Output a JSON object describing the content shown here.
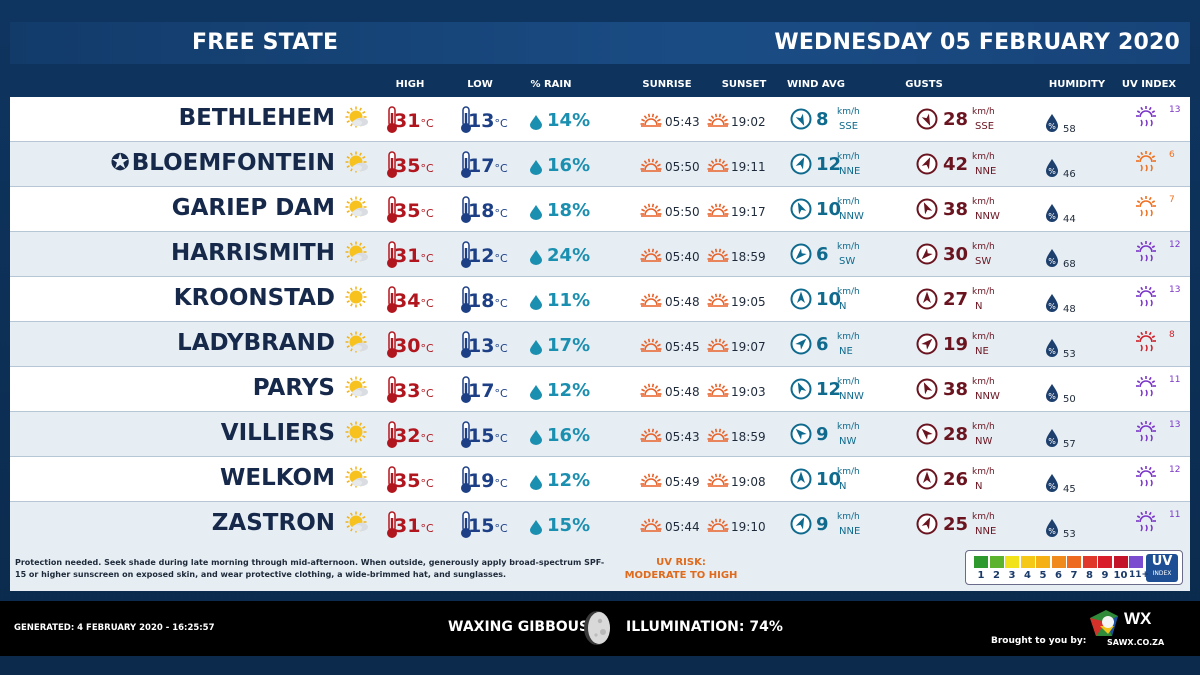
{
  "header": {
    "region": "FREE STATE",
    "date": "WEDNESDAY 05 FEBRUARY 2020"
  },
  "columns": {
    "high": "HIGH",
    "low": "LOW",
    "rain": "% RAIN",
    "sunrise": "SUNRISE",
    "sunset": "SUNSET",
    "wind": "WIND AVG",
    "gusts": "GUSTS",
    "humidity": "HUMIDITY",
    "uv": "UV INDEX"
  },
  "units": {
    "temp": "°C",
    "rain": "%",
    "speed": "km/h"
  },
  "capital_marker": "✪",
  "rows": [
    {
      "city": "BETHLEHEM",
      "capital": false,
      "weather": "sun-cloud",
      "high": "31",
      "low": "13",
      "rain": "14",
      "sunrise": "05:43",
      "sunset": "19:02",
      "wind": "8",
      "wind_dir": "SSE",
      "wind_deg": 155,
      "gust": "28",
      "gust_dir": "SSE",
      "humidity": "58",
      "uv": "13",
      "uv_color": "#7b36c8"
    },
    {
      "city": "BLOEMFONTEIN",
      "capital": true,
      "weather": "sun-cloud",
      "high": "35",
      "low": "17",
      "rain": "16",
      "sunrise": "05:50",
      "sunset": "19:11",
      "wind": "12",
      "wind_dir": "NNE",
      "wind_deg": 25,
      "gust": "42",
      "gust_dir": "NNE",
      "humidity": "46",
      "uv": "6",
      "uv_color": "#f07020"
    },
    {
      "city": "GARIEP DAM",
      "capital": false,
      "weather": "sun-cloud",
      "high": "35",
      "low": "18",
      "rain": "18",
      "sunrise": "05:50",
      "sunset": "19:17",
      "wind": "10",
      "wind_dir": "NNW",
      "wind_deg": 335,
      "gust": "38",
      "gust_dir": "NNW",
      "humidity": "44",
      "uv": "7",
      "uv_color": "#f07020"
    },
    {
      "city": "HARRISMITH",
      "capital": false,
      "weather": "sun-cloud",
      "high": "31",
      "low": "12",
      "rain": "24",
      "sunrise": "05:40",
      "sunset": "18:59",
      "wind": "6",
      "wind_dir": "SW",
      "wind_deg": 225,
      "gust": "30",
      "gust_dir": "SW",
      "humidity": "68",
      "uv": "12",
      "uv_color": "#7b36c8"
    },
    {
      "city": "KROONSTAD",
      "capital": false,
      "weather": "sun",
      "high": "34",
      "low": "18",
      "rain": "11",
      "sunrise": "05:48",
      "sunset": "19:05",
      "wind": "10",
      "wind_dir": "N",
      "wind_deg": 0,
      "gust": "27",
      "gust_dir": "N",
      "humidity": "48",
      "uv": "13",
      "uv_color": "#7b36c8"
    },
    {
      "city": "LADYBRAND",
      "capital": false,
      "weather": "sun-cloud",
      "high": "30",
      "low": "13",
      "rain": "17",
      "sunrise": "05:45",
      "sunset": "19:07",
      "wind": "6",
      "wind_dir": "NE",
      "wind_deg": 45,
      "gust": "19",
      "gust_dir": "NE",
      "humidity": "53",
      "uv": "8",
      "uv_color": "#d0202a"
    },
    {
      "city": "PARYS",
      "capital": false,
      "weather": "sun-cloud",
      "high": "33",
      "low": "17",
      "rain": "12",
      "sunrise": "05:48",
      "sunset": "19:03",
      "wind": "12",
      "wind_dir": "NNW",
      "wind_deg": 335,
      "gust": "38",
      "gust_dir": "NNW",
      "humidity": "50",
      "uv": "11",
      "uv_color": "#7b36c8"
    },
    {
      "city": "VILLIERS",
      "capital": false,
      "weather": "sun",
      "high": "32",
      "low": "15",
      "rain": "16",
      "sunrise": "05:43",
      "sunset": "18:59",
      "wind": "9",
      "wind_dir": "NW",
      "wind_deg": 315,
      "gust": "28",
      "gust_dir": "NW",
      "humidity": "57",
      "uv": "13",
      "uv_color": "#7b36c8"
    },
    {
      "city": "WELKOM",
      "capital": false,
      "weather": "sun-cloud",
      "high": "35",
      "low": "19",
      "rain": "12",
      "sunrise": "05:49",
      "sunset": "19:08",
      "wind": "10",
      "wind_dir": "N",
      "wind_deg": 0,
      "gust": "26",
      "gust_dir": "N",
      "humidity": "45",
      "uv": "12",
      "uv_color": "#7b36c8"
    },
    {
      "city": "ZASTRON",
      "capital": false,
      "weather": "sun-cloud",
      "high": "31",
      "low": "15",
      "rain": "15",
      "sunrise": "05:44",
      "sunset": "19:10",
      "wind": "9",
      "wind_dir": "NNE",
      "wind_deg": 25,
      "gust": "25",
      "gust_dir": "NNE",
      "humidity": "53",
      "uv": "11",
      "uv_color": "#7b36c8"
    }
  ],
  "footer": {
    "advice": "Protection needed. Seek shade during late morning through mid-afternoon. When outside, generously apply broad-spectrum SPF-15 or higher sunscreen on exposed skin, and wear protective clothing, a wide-brimmed hat, and sunglasses.",
    "uv_risk_label": "UV RISK:",
    "uv_risk_value": "MODERATE TO HIGH",
    "uv_scale": {
      "numbers": [
        "1",
        "2",
        "3",
        "4",
        "5",
        "6",
        "7",
        "8",
        "9",
        "10",
        "11+"
      ],
      "colors": [
        "#2e9a2e",
        "#5cb42e",
        "#f2e21c",
        "#f5c818",
        "#f5b016",
        "#f08a1c",
        "#ee6a20",
        "#e0382a",
        "#d81e2a",
        "#c4142a",
        "#7b4cd0"
      ],
      "badge_big": "UV",
      "badge_small": "INDEX"
    }
  },
  "bottom": {
    "generated": "GENERATED: 4 FEBRUARY 2020 - 16:25:57",
    "moon_phase": "WAXING GIBBOUS",
    "illumination": "ILLUMINATION: 74%",
    "brought_by": "Brought to you by:",
    "logo_text": "WX",
    "logo_url": "SAWX.CO.ZA"
  }
}
